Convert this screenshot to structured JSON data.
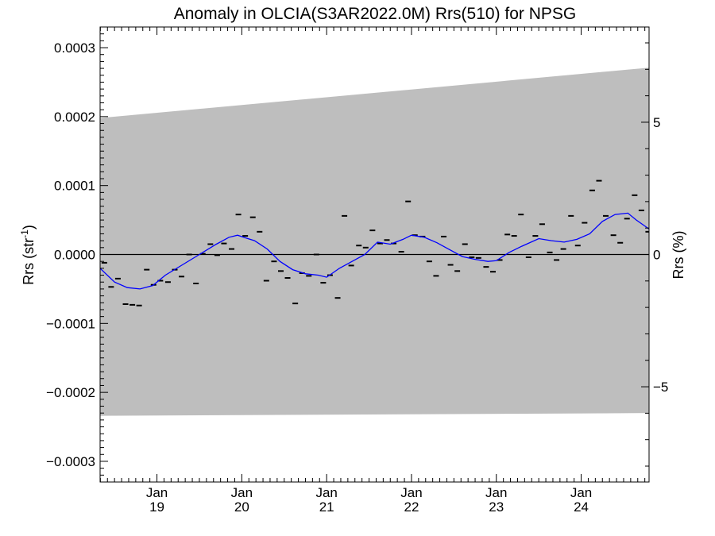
{
  "chart_data": {
    "type": "scatter",
    "title": "Anomaly in OLCIA(S3AR2022.0M) Rrs(510) for NPSG",
    "ylabel_left": "Rrs (str",
    "ylabel_left_sup": "-1",
    "ylabel_left_end": ")",
    "ylabel_right": "Rrs (%)",
    "xlim": [
      2018.33,
      2024.8
    ],
    "ylim": [
      -0.00033,
      0.00033
    ],
    "y2lim": [
      -8.6,
      8.6
    ],
    "grid": false,
    "zero_line": true,
    "x_ticks": [
      {
        "value": 2019.0,
        "month": "Jan",
        "year": "19"
      },
      {
        "value": 2020.0,
        "month": "Jan",
        "year": "20"
      },
      {
        "value": 2021.0,
        "month": "Jan",
        "year": "21"
      },
      {
        "value": 2022.0,
        "month": "Jan",
        "year": "22"
      },
      {
        "value": 2023.0,
        "month": "Jan",
        "year": "23"
      },
      {
        "value": 2024.0,
        "month": "Jan",
        "year": "24"
      }
    ],
    "y_ticks": [
      {
        "value": 0.0003,
        "label": "0.0003"
      },
      {
        "value": 0.0002,
        "label": "0.0002"
      },
      {
        "value": 0.0001,
        "label": "0.0001"
      },
      {
        "value": 0.0,
        "label": "0.0000"
      },
      {
        "value": -0.0001,
        "label": "−0.0001"
      },
      {
        "value": -0.0002,
        "label": "−0.0002"
      },
      {
        "value": -0.0003,
        "label": "−0.0003"
      }
    ],
    "y2_ticks": [
      {
        "value": 5,
        "label": "5"
      },
      {
        "value": 0,
        "label": "0"
      },
      {
        "value": -5,
        "label": "−5"
      }
    ],
    "band": {
      "color": "#bebebe",
      "x": [
        2018.33,
        2024.8
      ],
      "upper": [
        0.000198,
        0.000271
      ],
      "lower": [
        -0.000234,
        -0.00023
      ]
    },
    "series": [
      {
        "kind": "monthly_points",
        "color": "#000000",
        "x": [
          2018.38,
          2018.46,
          2018.54,
          2018.63,
          2018.71,
          2018.79,
          2018.88,
          2018.96,
          2019.04,
          2019.13,
          2019.21,
          2019.29,
          2019.38,
          2019.46,
          2019.54,
          2019.63,
          2019.71,
          2019.79,
          2019.88,
          2019.96,
          2020.04,
          2020.13,
          2020.21,
          2020.29,
          2020.38,
          2020.46,
          2020.54,
          2020.63,
          2020.71,
          2020.79,
          2020.88,
          2020.96,
          2021.04,
          2021.13,
          2021.21,
          2021.29,
          2021.38,
          2021.46,
          2021.54,
          2021.63,
          2021.71,
          2021.79,
          2021.88,
          2021.96,
          2022.04,
          2022.13,
          2022.21,
          2022.29,
          2022.38,
          2022.46,
          2022.54,
          2022.63,
          2022.71,
          2022.79,
          2022.88,
          2022.96,
          2023.04,
          2023.13,
          2023.21,
          2023.29,
          2023.38,
          2023.46,
          2023.54,
          2023.63,
          2023.71,
          2023.79,
          2023.88,
          2023.96,
          2024.04,
          2024.13,
          2024.21,
          2024.29,
          2024.38,
          2024.46,
          2024.54,
          2024.63,
          2024.71,
          2024.79
        ],
        "y": [
          -1.2e-05,
          -4.7e-05,
          -3.5e-05,
          -7.2e-05,
          -7.3e-05,
          -7.4e-05,
          -2.2e-05,
          -4.4e-05,
          -3.8e-05,
          -4e-05,
          -2.2e-05,
          -3.2e-05,
          0.0,
          -4.2e-05,
          1e-06,
          1.5e-05,
          -1e-06,
          1.6e-05,
          8e-06,
          5.8e-05,
          2.7e-05,
          5.4e-05,
          3.3e-05,
          -3.8e-05,
          -1e-05,
          -2.4e-05,
          -3.4e-05,
          -7.1e-05,
          -2.7e-05,
          -3.1e-05,
          0.0,
          -4.1e-05,
          -3e-05,
          -6.3e-05,
          5.6e-05,
          -1.6e-05,
          1.3e-05,
          1e-05,
          3.5e-05,
          1.6e-05,
          2.1e-05,
          1.6e-05,
          4e-06,
          7.7e-05,
          2.8e-05,
          2.6e-05,
          -1e-05,
          -3.1e-05,
          2.6e-05,
          -1.5e-05,
          -2.4e-05,
          1.5e-05,
          -4e-06,
          -5e-06,
          -1.8e-05,
          -2.5e-05,
          -8e-06,
          2.9e-05,
          2.7e-05,
          5.8e-05,
          -4e-06,
          2.7e-05,
          4.4e-05,
          3e-06,
          -8e-06,
          8e-06,
          5.6e-05,
          1.3e-05,
          4.6e-05,
          9.3e-05,
          0.000107,
          5.6e-05,
          2.8e-05,
          1.7e-05,
          5.2e-05,
          8.6e-05,
          6.4e-05,
          3.3e-05
        ]
      },
      {
        "kind": "smoothed_line",
        "color": "#0000ff",
        "x": [
          2018.33,
          2018.5,
          2018.65,
          2018.8,
          2018.95,
          2019.1,
          2019.3,
          2019.5,
          2019.7,
          2019.85,
          2019.95,
          2020.05,
          2020.15,
          2020.3,
          2020.45,
          2020.6,
          2020.75,
          2020.9,
          2021.0,
          2021.15,
          2021.3,
          2021.45,
          2021.6,
          2021.75,
          2021.9,
          2022.0,
          2022.15,
          2022.3,
          2022.45,
          2022.6,
          2022.75,
          2022.9,
          2023.0,
          2023.15,
          2023.3,
          2023.5,
          2023.65,
          2023.8,
          2023.95,
          2024.1,
          2024.25,
          2024.4,
          2024.55,
          2024.65,
          2024.8
        ],
        "y": [
          -2e-05,
          -4e-05,
          -4.8e-05,
          -5e-05,
          -4.5e-05,
          -3e-05,
          -1.5e-05,
          0.0,
          1.5e-05,
          2.5e-05,
          2.8e-05,
          2.4e-05,
          2e-05,
          8e-06,
          -1e-05,
          -2.2e-05,
          -2.8e-05,
          -3e-05,
          -3.3e-05,
          -2e-05,
          -1e-05,
          0.0,
          1.8e-05,
          1.5e-05,
          2.2e-05,
          2.8e-05,
          2.5e-05,
          1.7e-05,
          7e-06,
          -3e-06,
          -7e-06,
          -1e-05,
          -9e-06,
          3e-06,
          1.2e-05,
          2.3e-05,
          2e-05,
          1.8e-05,
          2.2e-05,
          3e-05,
          4.8e-05,
          5.8e-05,
          6e-05,
          5e-05,
          3.7e-05
        ]
      }
    ]
  }
}
